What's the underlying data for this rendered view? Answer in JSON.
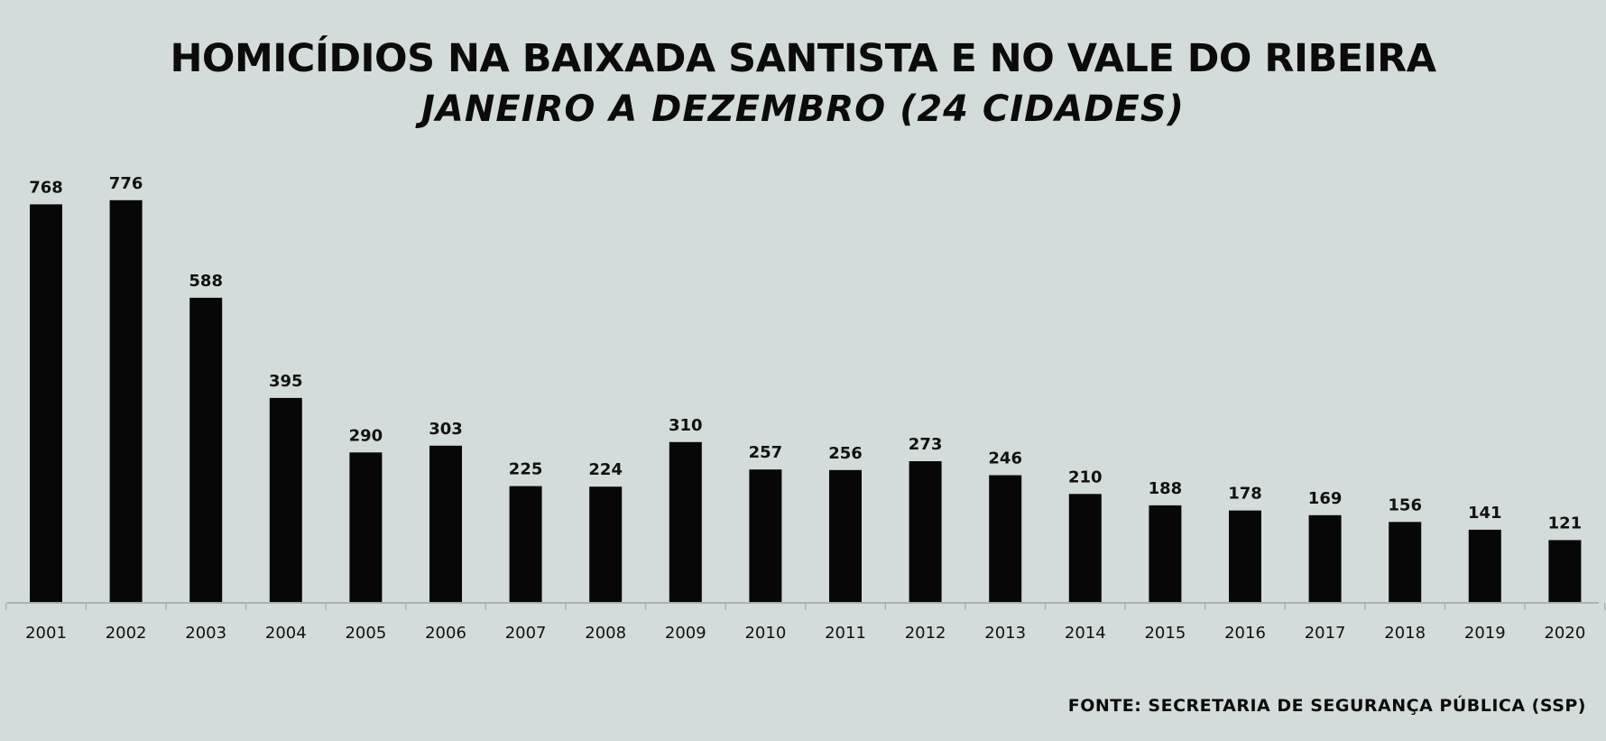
{
  "chart_data": {
    "type": "bar",
    "title": "HOMICÍDIOS NA BAIXADA SANTISTA E NO VALE DO RIBEIRA",
    "subtitle": "JANEIRO A DEZEMBRO (24 CIDADES)",
    "categories": [
      "2001",
      "2002",
      "2003",
      "2004",
      "2005",
      "2006",
      "2007",
      "2008",
      "2009",
      "2010",
      "2011",
      "2012",
      "2013",
      "2014",
      "2015",
      "2016",
      "2017",
      "2018",
      "2019",
      "2020"
    ],
    "values": [
      768,
      776,
      588,
      395,
      290,
      303,
      225,
      224,
      310,
      257,
      256,
      273,
      246,
      210,
      188,
      178,
      169,
      156,
      141,
      121
    ],
    "ylim": [
      0,
      800
    ],
    "grid": false,
    "legend": "none",
    "bar_color": "#070707",
    "background_color": "#d3dcda",
    "source": "FONTE: SECRETARIA DE SEGURANÇA PÚBLICA (SSP)"
  }
}
